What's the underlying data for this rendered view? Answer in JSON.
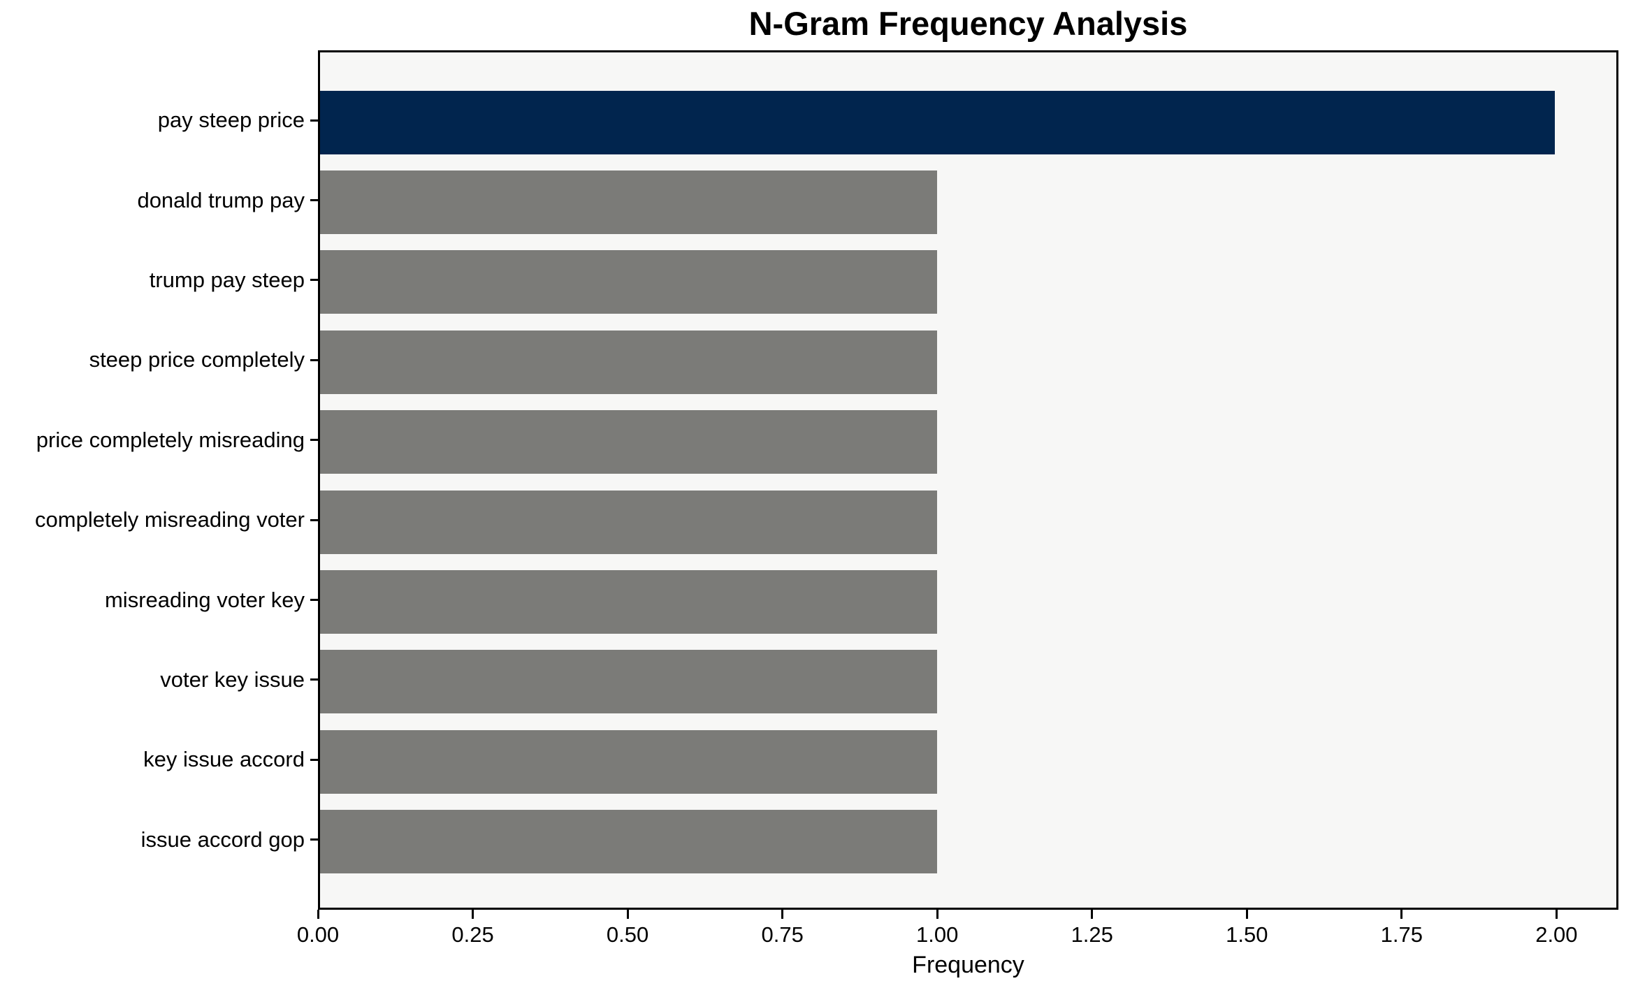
{
  "chart_data": {
    "type": "bar",
    "orientation": "horizontal",
    "title": "N-Gram Frequency Analysis",
    "xlabel": "Frequency",
    "ylabel": "",
    "categories": [
      "pay steep price",
      "donald trump pay",
      "trump pay steep",
      "steep price completely",
      "price completely misreading",
      "completely misreading voter",
      "misreading voter key",
      "voter key issue",
      "key issue accord",
      "issue accord gop"
    ],
    "values": [
      2,
      1,
      1,
      1,
      1,
      1,
      1,
      1,
      1,
      1
    ],
    "xlim": [
      0,
      2.1
    ],
    "xticks": [
      0.0,
      0.25,
      0.5,
      0.75,
      1.0,
      1.25,
      1.5,
      1.75,
      2.0
    ],
    "xtick_labels": [
      "0.00",
      "0.25",
      "0.50",
      "0.75",
      "1.00",
      "1.25",
      "1.50",
      "1.75",
      "2.00"
    ],
    "grid": false,
    "legend": null,
    "colors": {
      "highlight_index": 0,
      "highlight_bar": "#01254e",
      "default_bar": "#7b7b78",
      "plot_background": "#f7f7f6",
      "figure_background": "#ffffff",
      "spine": "#000000",
      "text": "#000000"
    }
  }
}
